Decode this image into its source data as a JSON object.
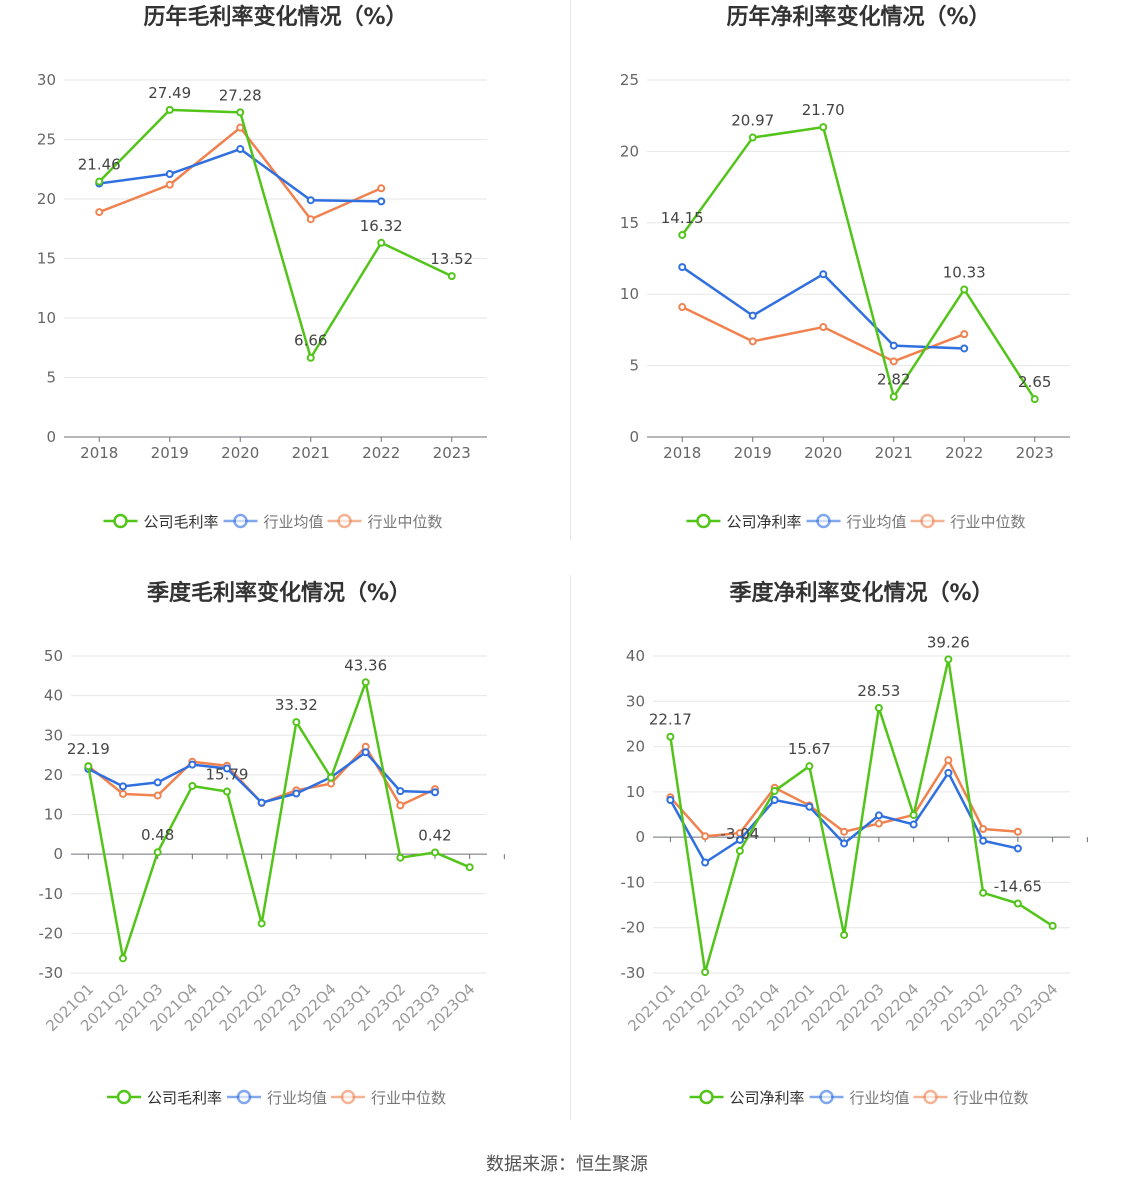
{
  "source": "数据来源：恒生聚源",
  "colors": {
    "company": "#52c41a",
    "avg": "#2f6fe0",
    "median": "#f08250",
    "grid": "#e6e6e6",
    "axis": "#6e7079",
    "text": "#666666",
    "title": "#333333"
  },
  "chart_data": [
    {
      "type": "line",
      "title": "历年毛利率变化情况（%）",
      "categories": [
        "2018",
        "2019",
        "2020",
        "2021",
        "2022",
        "2023"
      ],
      "ylim": [
        0,
        30
      ],
      "yticks": [
        0,
        5,
        10,
        15,
        20,
        25,
        30
      ],
      "series": [
        {
          "name": "公司毛利率",
          "values": [
            21.46,
            27.49,
            27.28,
            6.66,
            16.32,
            13.52
          ]
        },
        {
          "name": "行业均值",
          "values": [
            21.3,
            22.1,
            24.2,
            19.9,
            19.8,
            null
          ]
        },
        {
          "name": "行业中位数",
          "values": [
            18.9,
            21.2,
            26.0,
            18.3,
            20.9,
            null
          ]
        }
      ],
      "labels": [
        "21.46",
        "27.49",
        "27.28",
        "6.66",
        "16.32",
        "13.52"
      ],
      "legend": [
        "公司毛利率",
        "行业均值",
        "行业中位数"
      ]
    },
    {
      "type": "line",
      "title": "历年净利率变化情况（%）",
      "categories": [
        "2018",
        "2019",
        "2020",
        "2021",
        "2022",
        "2023"
      ],
      "ylim": [
        0,
        25
      ],
      "yticks": [
        0,
        5,
        10,
        15,
        20,
        25
      ],
      "series": [
        {
          "name": "公司净利率",
          "values": [
            14.15,
            20.97,
            21.7,
            2.82,
            10.33,
            2.65
          ]
        },
        {
          "name": "行业均值",
          "values": [
            11.9,
            8.5,
            11.4,
            6.4,
            6.2,
            null
          ]
        },
        {
          "name": "行业中位数",
          "values": [
            9.1,
            6.7,
            7.7,
            5.3,
            7.2,
            null
          ]
        }
      ],
      "labels": [
        "14.15",
        "20.97",
        "21.70",
        "2.82",
        "10.33",
        "2.65"
      ],
      "legend": [
        "公司净利率",
        "行业均值",
        "行业中位数"
      ]
    },
    {
      "type": "line",
      "title": "季度毛利率变化情况（%）",
      "categories": [
        "2021Q1",
        "2021Q2",
        "2021Q3",
        "2021Q4",
        "2022Q1",
        "2022Q2",
        "2022Q3",
        "2022Q4",
        "2023Q1",
        "2023Q2",
        "2023Q3",
        "2023Q4"
      ],
      "ylim": [
        -30,
        50
      ],
      "yticks": [
        -30,
        -20,
        -10,
        0,
        10,
        20,
        30,
        40,
        50
      ],
      "series": [
        {
          "name": "公司毛利率",
          "values": [
            22.19,
            -26.3,
            0.48,
            17.2,
            15.79,
            -17.5,
            33.32,
            19.3,
            43.36,
            -0.9,
            0.42,
            -3.3
          ]
        },
        {
          "name": "行业均值",
          "values": [
            21.5,
            17.1,
            18.1,
            22.6,
            21.6,
            13.0,
            15.3,
            19.4,
            25.7,
            15.9,
            15.6,
            null
          ]
        },
        {
          "name": "行业中位数",
          "values": [
            22.2,
            15.2,
            14.8,
            23.3,
            22.3,
            12.9,
            16.1,
            17.8,
            27.1,
            12.3,
            16.4,
            null
          ]
        }
      ],
      "labels": [
        "22.19",
        "",
        "0.48",
        "",
        "15.79",
        "",
        "33.32",
        "",
        "43.36",
        "",
        "0.42",
        ""
      ],
      "legend": [
        "公司毛利率",
        "行业均值",
        "行业中位数"
      ]
    },
    {
      "type": "line",
      "title": "季度净利率变化情况（%）",
      "categories": [
        "2021Q1",
        "2021Q2",
        "2021Q3",
        "2021Q4",
        "2022Q1",
        "2022Q2",
        "2022Q3",
        "2022Q4",
        "2023Q1",
        "2023Q2",
        "2023Q3",
        "2023Q4"
      ],
      "ylim": [
        -30,
        40
      ],
      "yticks": [
        -30,
        -20,
        -10,
        0,
        10,
        20,
        30,
        40
      ],
      "series": [
        {
          "name": "公司净利率",
          "values": [
            22.17,
            -29.8,
            -3.04,
            10.2,
            15.67,
            -21.6,
            28.53,
            4.9,
            39.26,
            -12.3,
            -14.65,
            -19.6
          ]
        },
        {
          "name": "行业均值",
          "values": [
            8.2,
            -5.6,
            -0.6,
            8.2,
            6.7,
            -1.4,
            4.8,
            2.8,
            14.2,
            -0.8,
            -2.5,
            null
          ]
        },
        {
          "name": "行业中位数",
          "values": [
            8.8,
            0.2,
            0.9,
            10.9,
            7.0,
            1.2,
            3.0,
            4.9,
            17.0,
            1.8,
            1.2,
            null
          ]
        }
      ],
      "labels": [
        "22.17",
        "",
        "-3.04",
        "",
        "15.67",
        "",
        "28.53",
        "",
        "39.26",
        "",
        "-14.65",
        ""
      ],
      "legend": [
        "公司净利率",
        "行业均值",
        "行业中位数"
      ]
    }
  ]
}
